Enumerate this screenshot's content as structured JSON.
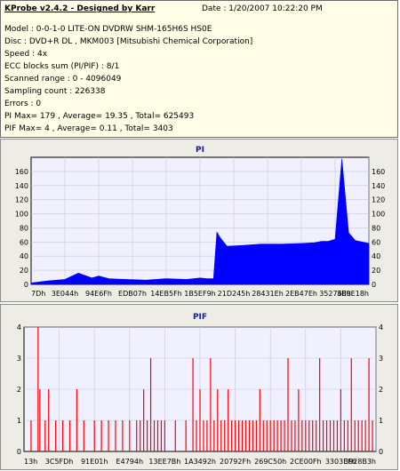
{
  "header": {
    "app_title": "KProbe v2.4.2 - Designed by Karr",
    "date": "Date : 1/20/2007 10:22:20 PM",
    "model": "Model : 0-0-1-0 LITE-ON DVDRW SHM-165H6S HS0E",
    "disc": "Disc : DVD+R DL , MKM003 [Mitsubishi Chemical Corporation]",
    "speed": "Speed : 4x",
    "ecc": "ECC blocks sum (PI/PIF) : 8/1",
    "scanned_range": "Scanned range : 0 - 4096049",
    "sampling_count": "Sampling count : 226338",
    "errors": "Errors : 0",
    "pi_summary": "PI Max= 179 , Average= 19.35 , Total= 625493",
    "pif_summary": "PIF Max= 4 , Average= 0.11 , Total= 3403"
  },
  "colors": {
    "pi_fill": "#0000ff",
    "pif_bars": "#ff0000",
    "plot_bg": "#f0f0ff",
    "grid": "#c8c8d8",
    "title": "#1a1aa0"
  },
  "chart_data": [
    {
      "type": "area",
      "title": "PI",
      "xlabel": "",
      "ylabel": "",
      "x_tick_labels": [
        "7Dh",
        "3E044h",
        "94E6Fh",
        "EDB07h",
        "14EB5Fh",
        "1B5EF9h",
        "21D245h",
        "28431Eh",
        "2EB47Eh",
        "35276Eh",
        "3B9E18h"
      ],
      "y_ticks": [
        0,
        20,
        40,
        60,
        80,
        100,
        120,
        140,
        160
      ],
      "ylim": [
        0,
        180
      ],
      "xlim": [
        0,
        100
      ],
      "grid": true,
      "series": [
        {
          "x": [
            0,
            5,
            10,
            14,
            18,
            20,
            23,
            28,
            34,
            40,
            46,
            50,
            52,
            54,
            55,
            56,
            58,
            62,
            68,
            74,
            80,
            84,
            86,
            88,
            90,
            92,
            94,
            96,
            98,
            100
          ],
          "y": [
            2,
            5,
            7,
            16,
            9,
            12,
            8,
            7,
            6,
            8,
            7,
            9,
            8,
            8,
            74,
            66,
            54,
            55,
            57,
            57,
            58,
            59,
            61,
            61,
            64,
            178,
            73,
            62,
            60,
            58
          ]
        }
      ]
    },
    {
      "type": "bar",
      "title": "PIF",
      "xlabel": "",
      "ylabel": "",
      "x_tick_labels": [
        "13h",
        "3C5FDh",
        "91E01h",
        "E4794h",
        "13EE7Bh",
        "1A3492h",
        "20792Fh",
        "269C50h",
        "2CE00Fh",
        "3303EFh",
        "3928B3h"
      ],
      "y_ticks": [
        0,
        1,
        2,
        3,
        4
      ],
      "ylim": [
        0,
        4
      ],
      "xlim": [
        0,
        100
      ],
      "grid": true,
      "series": [
        {
          "x": [
            2,
            4,
            4.5,
            6,
            7,
            9,
            11,
            13,
            15,
            17,
            20,
            22,
            24,
            26,
            28,
            30,
            32,
            33,
            34,
            35,
            36,
            37,
            38,
            39,
            40,
            43,
            46,
            48,
            49,
            50,
            51,
            52,
            53,
            54,
            55,
            56,
            57,
            58,
            59,
            60,
            61,
            62,
            63,
            64,
            65,
            66,
            67,
            68,
            69,
            70,
            71,
            72,
            73,
            74,
            75,
            76,
            77,
            78,
            79,
            80,
            81,
            82,
            83,
            84,
            85,
            86,
            87,
            88,
            89,
            90,
            91,
            92,
            93,
            94,
            95,
            96,
            97,
            98,
            99
          ],
          "y": [
            1,
            4,
            2,
            1,
            2,
            1,
            1,
            1,
            2,
            1,
            1,
            1,
            1,
            1,
            1,
            1,
            1,
            1,
            2,
            1,
            3,
            1,
            1,
            1,
            1,
            1,
            1,
            3,
            1,
            2,
            1,
            1,
            3,
            1,
            2,
            1,
            1,
            2,
            1,
            1,
            1,
            1,
            1,
            1,
            1,
            1,
            2,
            1,
            1,
            1,
            1,
            1,
            1,
            1,
            3,
            1,
            1,
            2,
            1,
            1,
            1,
            1,
            1,
            3,
            1,
            1,
            1,
            1,
            1,
            2,
            1,
            1,
            3,
            1,
            1,
            1,
            1,
            3,
            1
          ]
        }
      ]
    }
  ]
}
